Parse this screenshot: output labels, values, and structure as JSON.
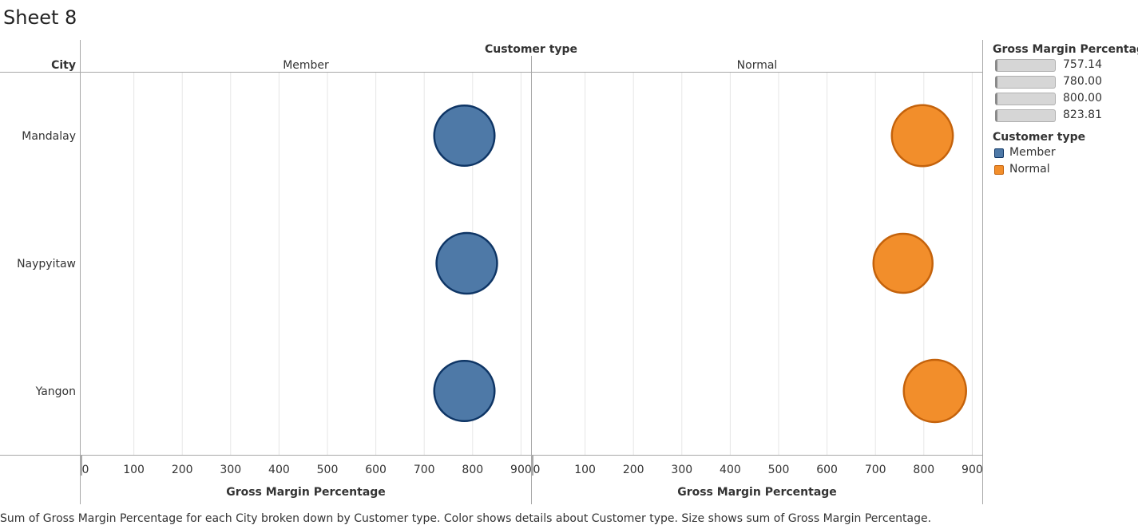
{
  "sheet": {
    "title": "Sheet 8",
    "caption": "Sum of Gross Margin Percentage for each City broken down by Customer type.  Color shows details about Customer type.  Size shows sum of Gross Margin Percentage."
  },
  "chart_data": {
    "type": "scatter",
    "row_field": "City",
    "column_field": "Customer type",
    "categories": [
      "Mandalay",
      "Naypyitaw",
      "Yangon"
    ],
    "xlabel": "Gross Margin Percentage",
    "xlim": [
      0,
      900
    ],
    "xticks": [
      0,
      100,
      200,
      300,
      400,
      500,
      600,
      700,
      800,
      900
    ],
    "grid": true,
    "panes": [
      {
        "name": "Member",
        "color": "#4e79a7",
        "stroke": "#0e3565",
        "values": [
          783,
          788,
          783
        ]
      },
      {
        "name": "Normal",
        "color": "#f28e2b",
        "stroke": "#c4620b",
        "values": [
          797,
          757,
          823
        ]
      }
    ]
  },
  "legend": {
    "size_title": "Gross Margin Percentage",
    "size_items": [
      "757.14",
      "780.00",
      "800.00",
      "823.81"
    ],
    "color_title": "Customer type",
    "color_items": [
      {
        "label": "Member",
        "color": "#4e79a7",
        "stroke": "#0e3565"
      },
      {
        "label": "Normal",
        "color": "#f28e2b",
        "stroke": "#c4620b"
      }
    ]
  }
}
